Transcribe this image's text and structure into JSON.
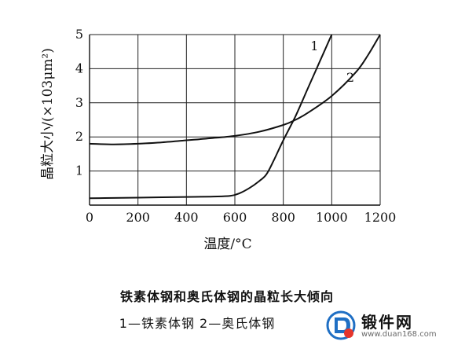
{
  "chart_data": {
    "type": "line",
    "xlabel": "温度/°C",
    "ylabel": "晶粒大小/(×103μm²)",
    "xlim": [
      0,
      1200
    ],
    "ylim": [
      0,
      5
    ],
    "x_ticks": [
      0,
      200,
      400,
      600,
      800,
      1000,
      1200
    ],
    "y_ticks": [
      1,
      2,
      3,
      4,
      5
    ],
    "grid": true,
    "series": [
      {
        "name": "1",
        "x": [
          0,
          100,
          200,
          300,
          400,
          500,
          580,
          620,
          660,
          700,
          730,
          760,
          800,
          850,
          900,
          950,
          1000
        ],
        "y": [
          0.2,
          0.21,
          0.22,
          0.23,
          0.24,
          0.25,
          0.27,
          0.35,
          0.5,
          0.7,
          0.9,
          1.3,
          1.9,
          2.6,
          3.4,
          4.2,
          5.0
        ]
      },
      {
        "name": "2",
        "x": [
          0,
          100,
          200,
          300,
          400,
          500,
          600,
          700,
          800,
          850,
          900,
          1000,
          1100,
          1150,
          1200
        ],
        "y": [
          1.8,
          1.78,
          1.8,
          1.84,
          1.9,
          1.96,
          2.03,
          2.15,
          2.35,
          2.5,
          2.7,
          3.2,
          3.9,
          4.4,
          5.0
        ]
      }
    ]
  },
  "caption": {
    "title": "铁素体钢和奥氏体钢的晶粒长大倾向",
    "legend": "1—铁素体钢   2—奥氏体钢"
  },
  "watermark": {
    "name": "锻件网",
    "url": "www.duan168.com"
  }
}
